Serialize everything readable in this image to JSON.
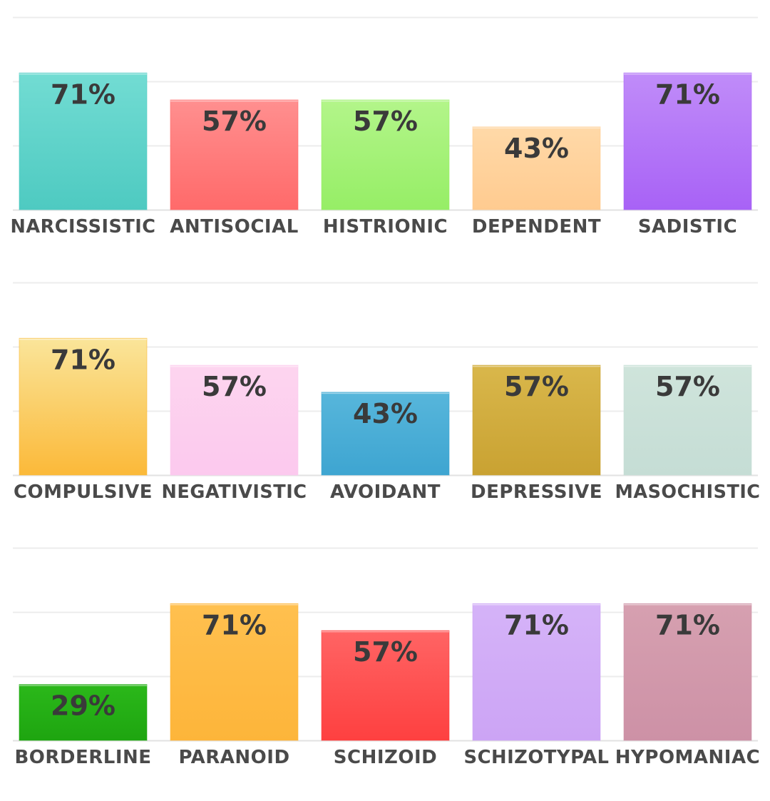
{
  "chart_data": [
    {
      "type": "bar",
      "ylim": [
        0,
        100
      ],
      "grid": true,
      "categories": [
        "NARCISSISTIC",
        "ANTISOCIAL",
        "HISTRIONIC",
        "DEPENDENT",
        "SADISTIC"
      ],
      "values": [
        71,
        57,
        57,
        43,
        71
      ],
      "labels": [
        "71%",
        "57%",
        "57%",
        "43%",
        "71%"
      ],
      "colors": [
        [
          "#72dcd3",
          "#4ecac1"
        ],
        [
          "#ff8f8f",
          "#ff6a6a"
        ],
        [
          "#b3f58a",
          "#96ee66"
        ],
        [
          "#ffd9a8",
          "#ffcb90"
        ],
        [
          "#c08cf9",
          "#a862f6"
        ]
      ]
    },
    {
      "type": "bar",
      "ylim": [
        0,
        100
      ],
      "grid": true,
      "categories": [
        "COMPULSIVE",
        "NEGATIVISTIC",
        "AVOIDANT",
        "DEPRESSIVE",
        "MASOCHISTIC"
      ],
      "values": [
        71,
        57,
        43,
        57,
        57
      ],
      "labels": [
        "71%",
        "57%",
        "43%",
        "57%",
        "57%"
      ],
      "colors": [
        [
          "#fae59a",
          "#fbb939"
        ],
        [
          "#fdd5ef",
          "#fcc9ee"
        ],
        [
          "#57b6db",
          "#3ea5d1"
        ],
        [
          "#d9b74b",
          "#c9a232"
        ],
        [
          "#cfe4db",
          "#c5ddd5"
        ]
      ]
    },
    {
      "type": "bar",
      "ylim": [
        0,
        100
      ],
      "grid": true,
      "categories": [
        "BORDERLINE",
        "PARANOID",
        "SCHIZOID",
        "SCHIZOTYPAL",
        "HYPOMANIAC"
      ],
      "values": [
        29,
        71,
        57,
        71,
        71
      ],
      "labels": [
        "29%",
        "71%",
        "57%",
        "71%",
        "71%"
      ],
      "colors": [
        [
          "#2bb81a",
          "#1ea510"
        ],
        [
          "#ffc04f",
          "#fdb53a"
        ],
        [
          "#ff6464",
          "#fe4040"
        ],
        [
          "#d5b3f8",
          "#cca4f5"
        ],
        [
          "#d6a0b0",
          "#cd91a6"
        ]
      ]
    }
  ]
}
